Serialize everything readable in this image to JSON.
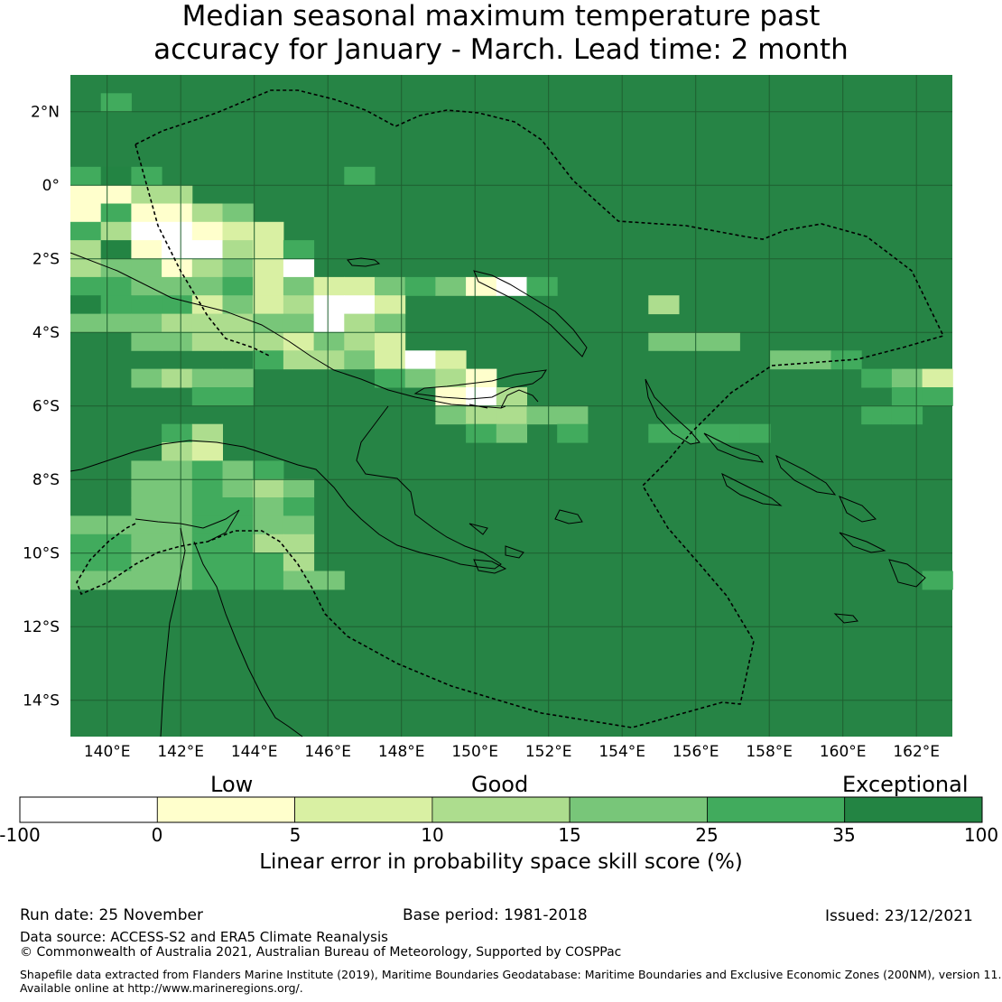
{
  "title_line1": "Median seasonal maximum temperature past",
  "title_line2": "accuracy for January - March. Lead time: 2 month",
  "colors": {
    "ocean": "#268445",
    "c0": "#ffffff",
    "c1": "#ffffcc",
    "c2": "#d9f0a3",
    "c3": "#addd8e",
    "c4": "#78c679",
    "c5": "#41ab5d",
    "c6": "#238443"
  },
  "map": {
    "lon_labels": [
      "140°E",
      "142°E",
      "144°E",
      "146°E",
      "148°E",
      "150°E",
      "152°E",
      "154°E",
      "156°E",
      "158°E",
      "160°E",
      "162°E"
    ],
    "lat_labels": [
      "2°N",
      "0°",
      "2°S",
      "4°S",
      "6°S",
      "8°S",
      "10°S",
      "12°S",
      "14°S"
    ],
    "lon_range": [
      139,
      163
    ],
    "lat_range": [
      -15,
      3
    ]
  },
  "colorbar": {
    "category_low": "Low",
    "category_good": "Good",
    "category_exceptional": "Exceptional",
    "ticks": [
      "-100",
      "0",
      "5",
      "10",
      "15",
      "25",
      "35",
      "100"
    ],
    "title": "Linear error in probability space skill score (%)"
  },
  "footer": {
    "run_date": "Run date: 25 November",
    "base_period": "Base period: 1981-2018",
    "issued": "Issued: 23/12/2021",
    "data_source": "Data source: ACCESS-S2 and ERA5 Climate Reanalysis",
    "copyright": "© Commonwealth of Australia 2021, Australian Bureau of Meteorology, Supported by COSPPac",
    "shapefile_line1": "Shapefile data extracted from Flanders Marine Institute (2019), Maritime Boundaries Geodatabase: Maritime Boundaries and Exclusive Economic Zones (200NM), version 11.",
    "shapefile_line2": "Available online at http://www.marineregions.org/."
  }
}
